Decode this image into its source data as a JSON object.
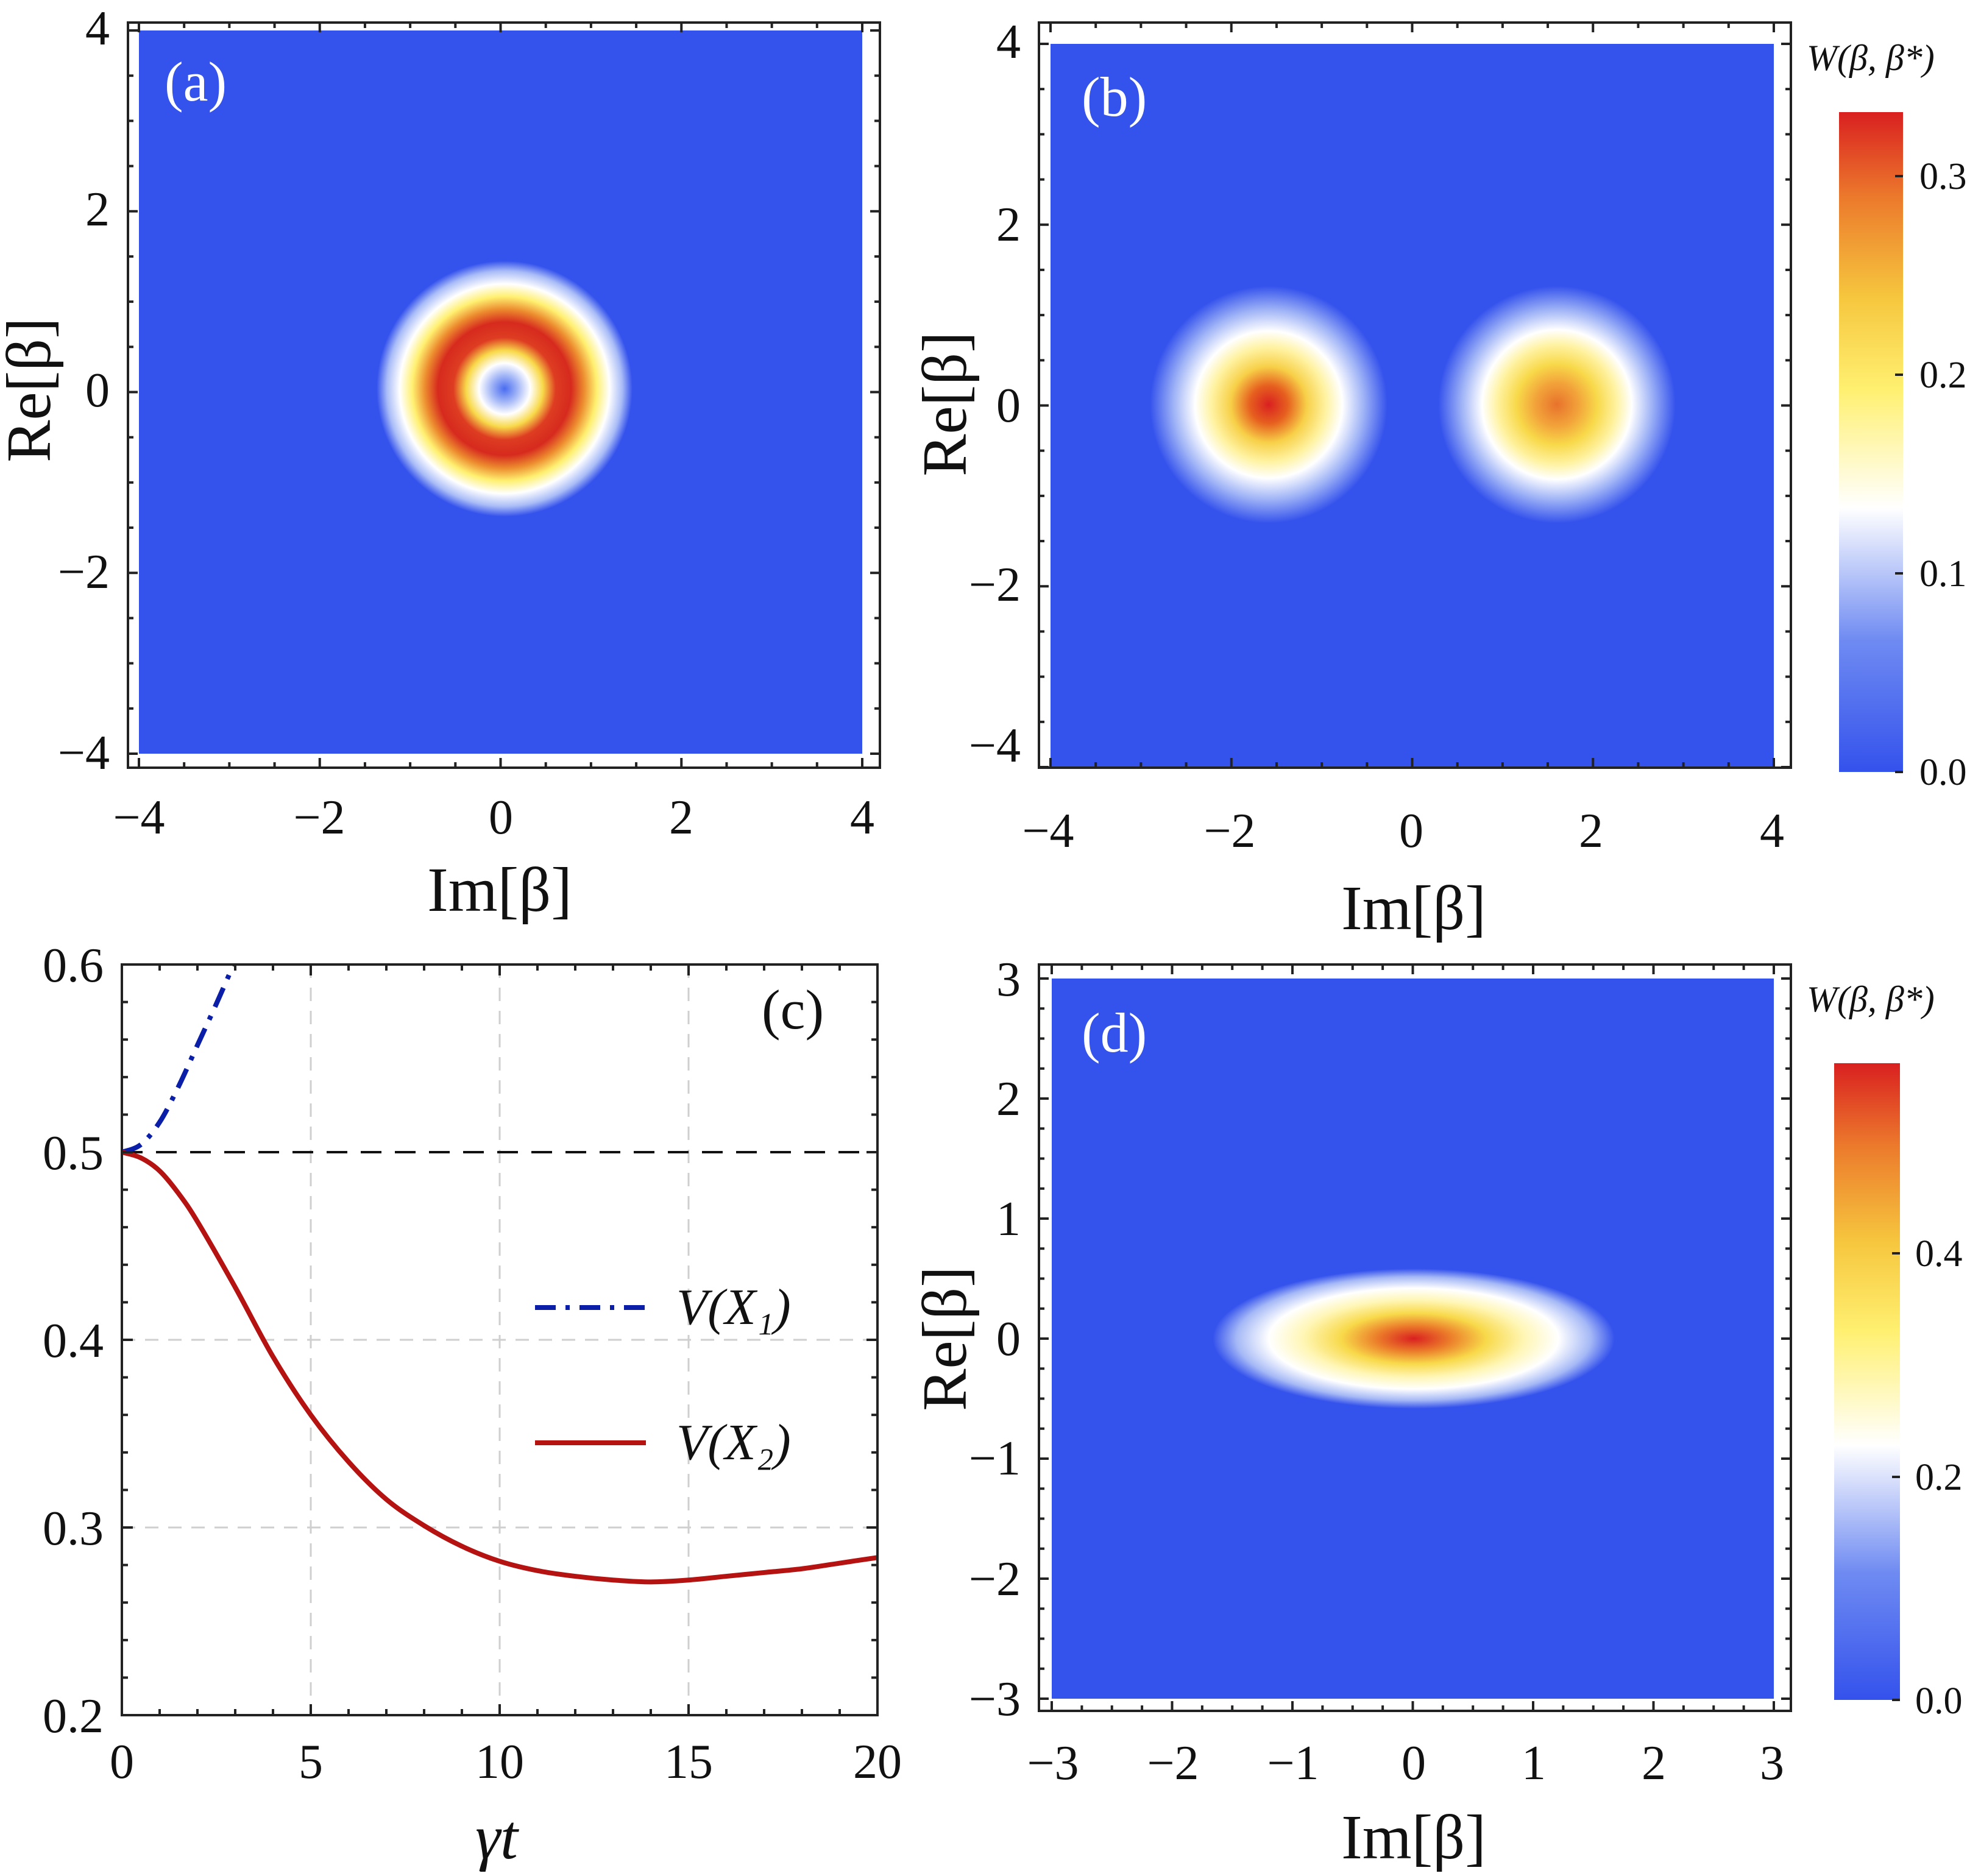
{
  "colors": {
    "background_blue": "#3452ec",
    "colormap": [
      "#3452ec",
      "#6f8bf2",
      "#ffffff",
      "#fff070",
      "#f6c63e",
      "#ec7a2c",
      "#d92020"
    ],
    "line_x1": "#0a1ea8",
    "line_x2": "#b51212"
  },
  "chart_data": [
    {
      "type": "heatmap",
      "panel_label": "(a)",
      "xlabel": "Im[β]",
      "ylabel": "Re[β]",
      "xlim": [
        -4,
        4
      ],
      "ylim": [
        -4,
        4
      ],
      "xticks": [
        "−4",
        "−2",
        "0",
        "2",
        "4"
      ],
      "yticks": [
        "−4",
        "−2",
        "0",
        "2",
        "4"
      ],
      "features": [
        {
          "shape": "ring",
          "center": [
            0,
            0
          ],
          "radius": 0.95,
          "peak": 0.33,
          "center_value": 0.03
        }
      ]
    },
    {
      "type": "heatmap",
      "panel_label": "(b)",
      "xlabel": "Im[β]",
      "ylabel": "Re[β]",
      "xlim": [
        -4,
        4
      ],
      "ylim": [
        -4,
        4
      ],
      "xticks": [
        "−4",
        "−2",
        "0",
        "2",
        "4"
      ],
      "yticks": [
        "−4",
        "−2",
        "0",
        "2",
        "4"
      ],
      "colorbar": {
        "title": "W(β, β*)",
        "ticks": [
          "0.0",
          "0.1",
          "0.2",
          "0.3"
        ],
        "range": [
          0,
          0.34
        ]
      },
      "features": [
        {
          "shape": "peak",
          "center": [
            -1.6,
            0
          ],
          "width": 0.75,
          "peak": 0.33
        },
        {
          "shape": "peak",
          "center": [
            1.6,
            0
          ],
          "width": 0.75,
          "peak": 0.28
        }
      ]
    },
    {
      "type": "line",
      "panel_label": "(c)",
      "xlabel": "γt",
      "ylabel": "",
      "xlim": [
        0,
        20
      ],
      "ylim": [
        0.2,
        0.6
      ],
      "xticks": [
        "0",
        "5",
        "10",
        "15",
        "20"
      ],
      "yticks": [
        "0.2",
        "0.3",
        "0.4",
        "0.5",
        "0.6"
      ],
      "grid": true,
      "reference_line": {
        "y": 0.5,
        "style": "dashed"
      },
      "legend_position": "center-right",
      "series": [
        {
          "name": "V(X₁)",
          "style": "dash-dot",
          "x": [
            0,
            0.5,
            1,
            1.5,
            2,
            2.5,
            3
          ],
          "y": [
            0.5,
            0.504,
            0.516,
            0.535,
            0.557,
            0.579,
            0.602
          ]
        },
        {
          "name": "V(X₂)",
          "style": "solid",
          "x": [
            0,
            0.5,
            1,
            1.5,
            2,
            3,
            4,
            5,
            6,
            7,
            8,
            9,
            10,
            11,
            12,
            13,
            14,
            15,
            16,
            17,
            18,
            19,
            20
          ],
          "y": [
            0.5,
            0.497,
            0.49,
            0.478,
            0.463,
            0.428,
            0.391,
            0.36,
            0.335,
            0.315,
            0.301,
            0.29,
            0.282,
            0.277,
            0.274,
            0.272,
            0.271,
            0.272,
            0.274,
            0.276,
            0.278,
            0.281,
            0.284
          ]
        }
      ]
    },
    {
      "type": "heatmap",
      "panel_label": "(d)",
      "xlabel": "Im[β]",
      "ylabel": "Re[β]",
      "xlim": [
        -3,
        3
      ],
      "ylim": [
        -3,
        3
      ],
      "xticks": [
        "−3",
        "−2",
        "−1",
        "0",
        "1",
        "2",
        "3"
      ],
      "yticks": [
        "−3",
        "−2",
        "−1",
        "0",
        "1",
        "2",
        "3"
      ],
      "colorbar": {
        "title": "W(β, β*)",
        "ticks": [
          "0.0",
          "0.2",
          "0.4"
        ],
        "range": [
          0,
          0.57
        ]
      },
      "features": [
        {
          "shape": "ellipse",
          "center": [
            0,
            0
          ],
          "width_x": 1.6,
          "width_y": 0.55,
          "peak": 0.57
        }
      ]
    }
  ]
}
